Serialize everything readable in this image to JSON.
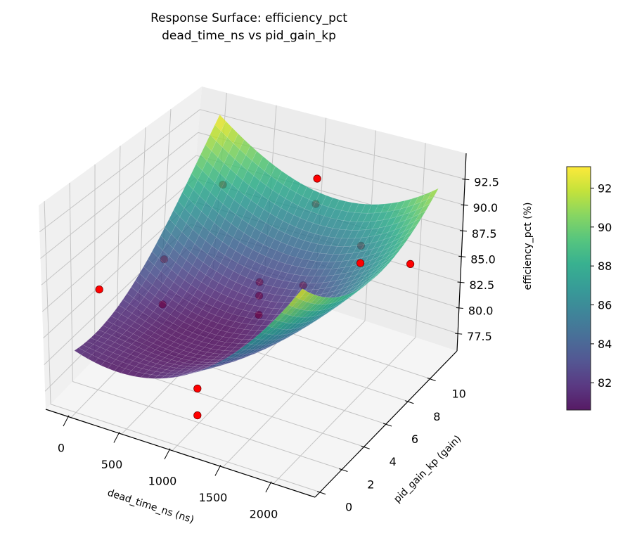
{
  "chart_data": {
    "type": "surface",
    "title": [
      "Response Surface: efficiency_pct",
      "dead_time_ns vs pid_gain_kp"
    ],
    "xlabel": "dead_time_ns (ns)",
    "ylabel": "pid_gain_kp (gain)",
    "zlabel": "efficiency_pct (%)",
    "xlim": [
      -250,
      2410
    ],
    "ylim": [
      -0.45,
      12.45
    ],
    "zlim": [
      75.8,
      95.0
    ],
    "x_ticks": [
      "0",
      "500",
      "1000",
      "1500",
      "2000"
    ],
    "y_ticks": [
      "0",
      "2",
      "4",
      "6",
      "8",
      "10"
    ],
    "z_ticks": [
      "77.5",
      "80.0",
      "82.5",
      "85.0",
      "87.5",
      "90.0",
      "92.5"
    ],
    "grid": true,
    "colormap": "viridis",
    "colormap_stops": [
      "#440154",
      "#482475",
      "#414487",
      "#355f8d",
      "#2a788e",
      "#21918c",
      "#22a884",
      "#44bf70",
      "#7ad151",
      "#bddf26",
      "#fde725"
    ],
    "surface": {
      "x": [
        0,
        550,
        1100,
        1650,
        2200
      ],
      "y": [
        0,
        3,
        6,
        9,
        12
      ],
      "z": [
        [
          81.6,
          80.85,
          82.47,
          86.46,
          92.8
        ],
        [
          81.6,
          80.6,
          81.0,
          84.0,
          89.5
        ],
        [
          83.58,
          81.18,
          81.14,
          83.48,
          88.17
        ],
        [
          87.54,
          84.31,
          83.45,
          84.96,
          88.82
        ],
        [
          93.1,
          89.44,
          87.76,
          88.44,
          91.47
        ]
      ]
    },
    "point_color": "#ff0000",
    "points": [
      {
        "x": 0,
        "y": 2.2,
        "z": 85.2,
        "behind": false
      },
      {
        "x": 0,
        "y": 7.8,
        "z": 82.4,
        "behind": true
      },
      {
        "x": 0,
        "y": 7.8,
        "z": 77.8,
        "behind": true
      },
      {
        "x": 200,
        "y": 10.9,
        "z": 87.4,
        "behind": true
      },
      {
        "x": 1000,
        "y": 12,
        "z": 89.2,
        "behind": false
      },
      {
        "x": 1000,
        "y": 12,
        "z": 86.6,
        "behind": true
      },
      {
        "x": 1200,
        "y": 5.4,
        "z": 86.1,
        "behind": true
      },
      {
        "x": 1200,
        "y": 5.4,
        "z": 84.8,
        "behind": true
      },
      {
        "x": 1200,
        "y": 5.4,
        "z": 83.0,
        "behind": true
      },
      {
        "x": 1560,
        "y": 6,
        "z": 86.2,
        "behind": true
      },
      {
        "x": 2110,
        "y": 6,
        "z": 91.3,
        "behind": true
      },
      {
        "x": 2110,
        "y": 6,
        "z": 89.7,
        "behind": false
      },
      {
        "x": 1960,
        "y": 12,
        "z": 83.4,
        "behind": false
      },
      {
        "x": 1200,
        "y": 0,
        "z": 81.5,
        "behind": false
      },
      {
        "x": 1200,
        "y": 0,
        "z": 79.1,
        "behind": false
      }
    ],
    "colorbar": {
      "range": [
        80.6,
        93.1
      ],
      "ticks": [
        "82",
        "84",
        "86",
        "88",
        "90",
        "92"
      ]
    }
  }
}
